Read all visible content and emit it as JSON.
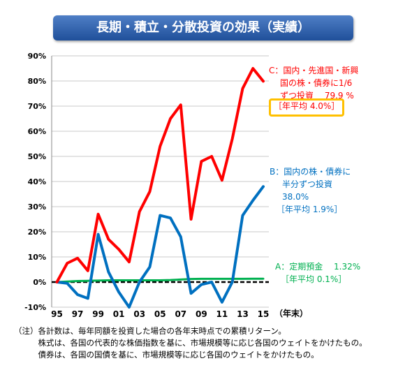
{
  "chart_data": {
    "type": "line",
    "title": "長期・積立・分散投資の効果（実績）",
    "xlabel": "（年末）",
    "ylabel": "",
    "ylim": [
      -10,
      90
    ],
    "yticks": [
      "90%",
      "80%",
      "70%",
      "60%",
      "50%",
      "40%",
      "30%",
      "20%",
      "10%",
      "0%",
      "-10%"
    ],
    "ytick_values": [
      90,
      80,
      70,
      60,
      50,
      40,
      30,
      20,
      10,
      0,
      -10
    ],
    "xtick_labels": [
      "95",
      "97",
      "99",
      "01",
      "03",
      "05",
      "07",
      "09",
      "11",
      "13",
      "15"
    ],
    "x": [
      1995,
      1996,
      1997,
      1998,
      1999,
      2000,
      2001,
      2002,
      2003,
      2004,
      2005,
      2006,
      2007,
      2008,
      2009,
      2010,
      2011,
      2012,
      2013,
      2014,
      2015
    ],
    "grid": true,
    "series": [
      {
        "name": "C：国内・先進国・新興国の株・債券に1/6ずつ投資",
        "color": "#ff0000",
        "values": [
          0,
          7.5,
          9.5,
          4.5,
          27,
          17,
          13,
          8,
          28,
          36,
          54,
          65,
          70.5,
          25,
          48,
          50,
          40.5,
          57,
          77,
          85,
          79.9
        ]
      },
      {
        "name": "B：国内の株・債券に半分ずつ投資",
        "color": "#0070c0",
        "values": [
          0,
          -0.5,
          -5,
          -6.5,
          19,
          4,
          -4,
          -10,
          0,
          6,
          26.5,
          25.5,
          18,
          -4.5,
          -1,
          0,
          -8,
          0,
          26.5,
          32.5,
          38.0
        ]
      },
      {
        "name": "A：定期預金",
        "color": "#00b050",
        "values": [
          0,
          0.2,
          0.4,
          0.5,
          0.6,
          0.7,
          0.7,
          0.7,
          0.7,
          0.7,
          0.7,
          0.8,
          1.0,
          1.2,
          1.3,
          1.3,
          1.3,
          1.3,
          1.3,
          1.32,
          1.32
        ]
      }
    ],
    "annotations": {
      "c": {
        "line1": "C：国内・先進国・新興",
        "line2": "国の株・債券に1/6",
        "line3": "ずつ投資　 79.9 %",
        "avg": "［年平均 4.0%］"
      },
      "b": {
        "line1": "B：国内の株・債券に",
        "line2": "半分ずつ投資",
        "line3": "38.0%",
        "avg": "［年平均 1.9%］"
      },
      "a": {
        "line1": "A：定期預金　 1.32%",
        "avg": "［年平均 0.1%］"
      }
    }
  },
  "notes": [
    "（注）各計数は、毎年同額を投資した場合の各年末時点での累積リターン。",
    "　　　株式は、各国の代表的な株価指数を基に、市場規模等に応じ各国のウェイトをかけたもの。",
    "　　　債券は、各国の国債を基に、市場規模等に応じ各国のウェイトをかけたもの。"
  ]
}
